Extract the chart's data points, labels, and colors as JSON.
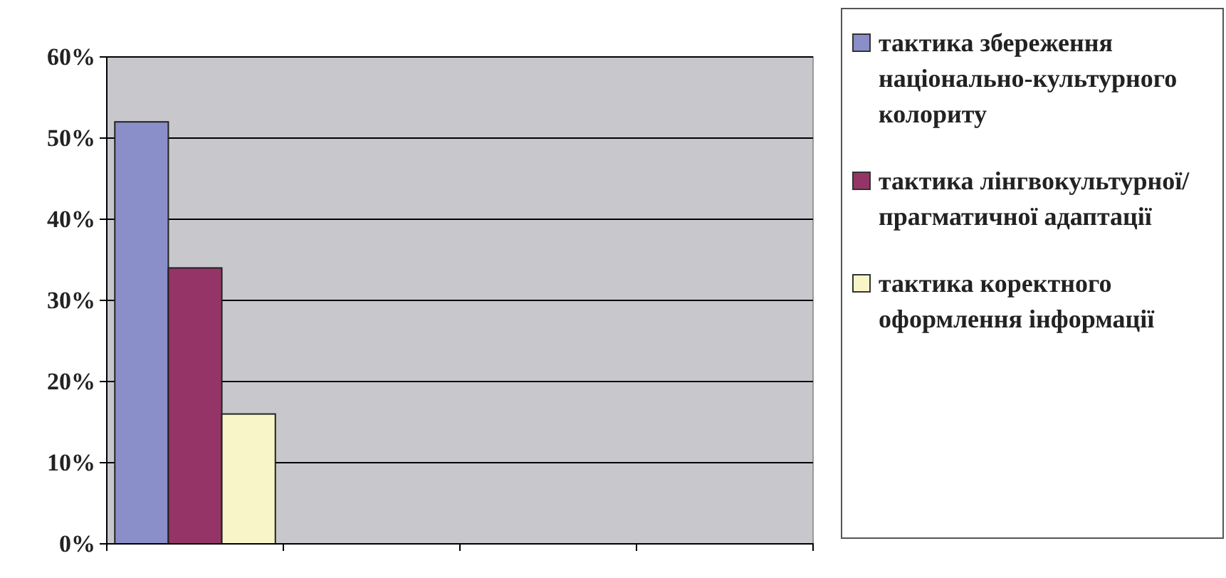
{
  "chart_data": {
    "type": "bar",
    "categories": [
      null,
      null,
      null,
      null
    ],
    "series": [
      {
        "name": "тактика збереження національно-культурного колориту",
        "color": "#8a8fc9",
        "values": [
          52,
          null,
          null,
          null
        ]
      },
      {
        "name": "тактика лінгвокультурної/ прагматичної адаптації",
        "color": "#953567",
        "values": [
          34,
          null,
          null,
          null
        ]
      },
      {
        "name": "тактика коректного оформлення інформації",
        "color": "#f8f6c8",
        "values": [
          16,
          null,
          null,
          null
        ]
      }
    ],
    "ylim": [
      0,
      60
    ],
    "yticks": [
      {
        "value": 0,
        "label": "0%"
      },
      {
        "value": 10,
        "label": "10%"
      },
      {
        "value": 20,
        "label": "20%"
      },
      {
        "value": 30,
        "label": "30%"
      },
      {
        "value": 40,
        "label": "40%"
      },
      {
        "value": 50,
        "label": "50%"
      },
      {
        "value": 60,
        "label": "60%"
      }
    ],
    "grid": "y",
    "legend": "right"
  }
}
